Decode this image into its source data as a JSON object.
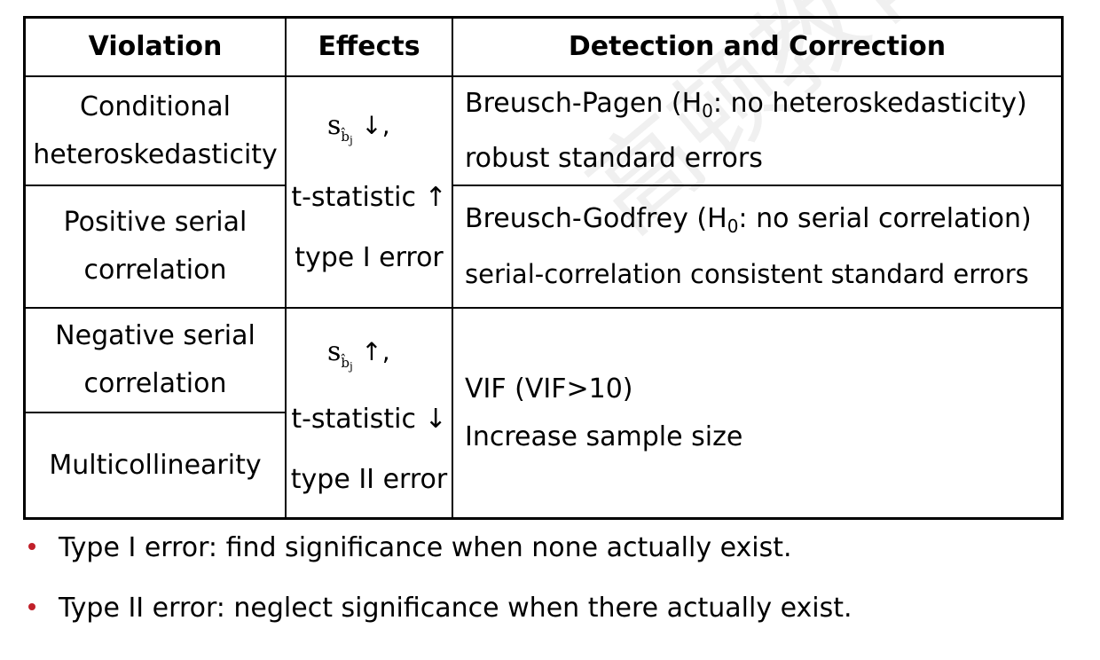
{
  "table": {
    "headers": [
      "Violation",
      "Effects",
      "Detection and Correction"
    ],
    "violations": [
      [
        "Conditional",
        "heteroskedasticity"
      ],
      [
        "Positive serial",
        "correlation"
      ],
      [
        "Negative serial",
        "correlation"
      ],
      [
        "Multicollinearity"
      ]
    ],
    "effects": [
      {
        "symbol": "s",
        "symbol_sub": "b̂",
        "symbol_subsub": "j",
        "symbol_arrow": "↓,",
        "line2": "t-statistic ↑",
        "line3": "type I error"
      },
      {
        "symbol": "s",
        "symbol_sub": "b̂",
        "symbol_subsub": "j",
        "symbol_arrow": "↑,",
        "line2": "t-statistic ↓",
        "line3": "type II error"
      }
    ],
    "detection": [
      {
        "line1_pre": "Breusch-Pagen (H",
        "line1_sub": "0",
        "line1_post": ": no heteroskedasticity)",
        "line2": "robust standard errors"
      },
      {
        "line1_pre": "Breusch-Godfrey (H",
        "line1_sub": "0",
        "line1_post": ": no serial correlation)",
        "line2": "serial-correlation consistent standard errors"
      },
      {
        "line1": "VIF (VIF>10)",
        "line2": "Increase sample size"
      }
    ]
  },
  "notes": [
    "Type I error: find significance when none actually exist.",
    "Type II error: neglect significance when there actually exist."
  ],
  "watermark": "高顿教育",
  "colors": {
    "bullet": "#c0202a",
    "border": "#000000"
  }
}
